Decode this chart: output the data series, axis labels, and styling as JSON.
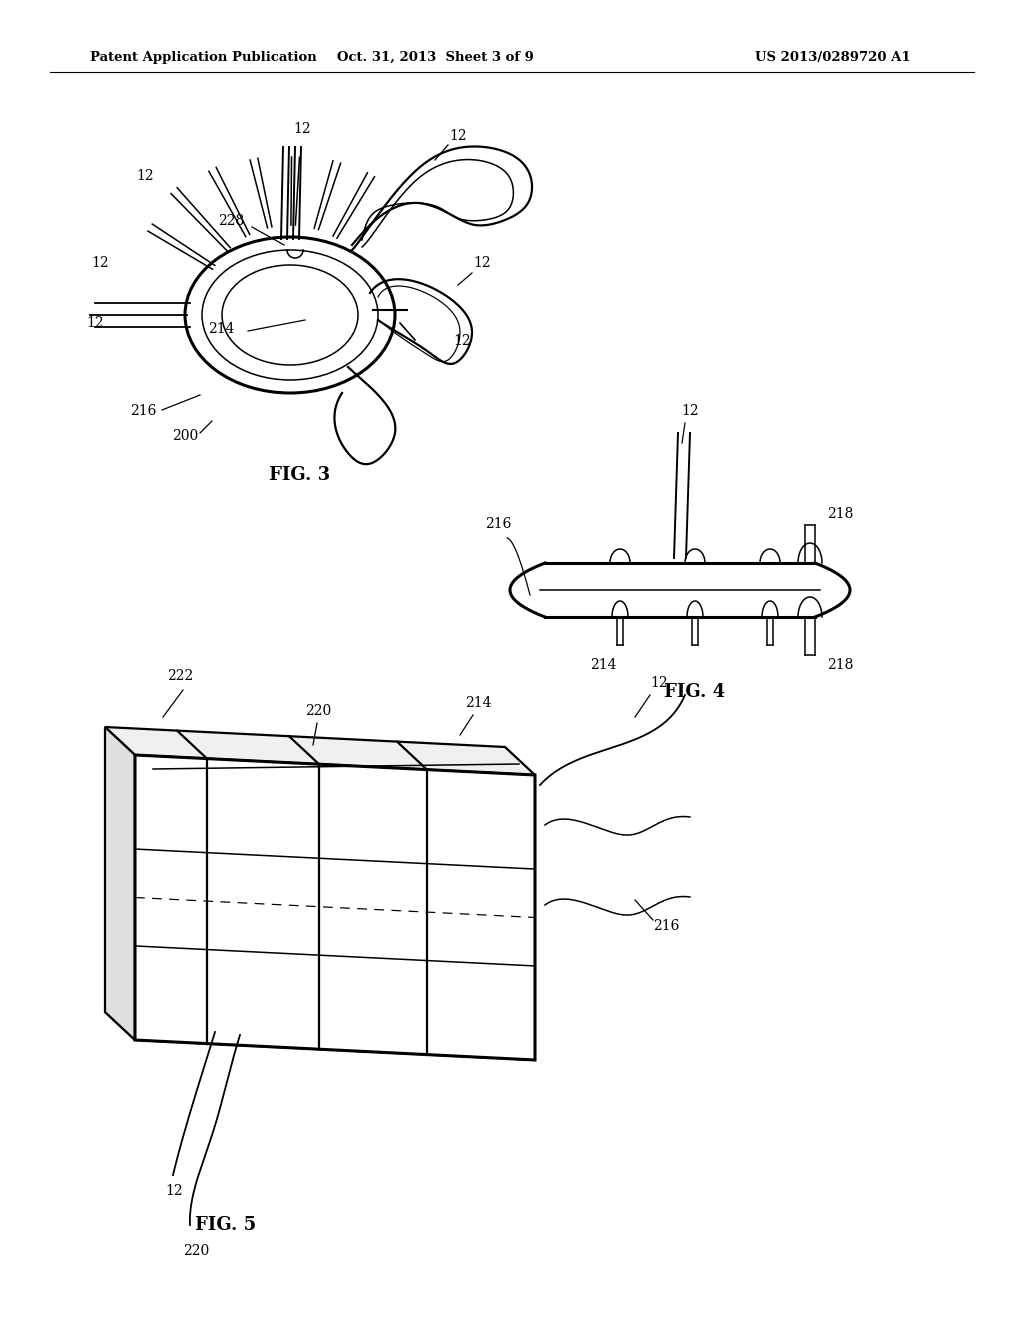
{
  "background_color": "#ffffff",
  "header_left": "Patent Application Publication",
  "header_center": "Oct. 31, 2013  Sheet 3 of 9",
  "header_right": "US 2013/0289720 A1",
  "fig3_label": "FIG. 3",
  "fig4_label": "FIG. 4",
  "fig5_label": "FIG. 5",
  "lw": 1.6,
  "lw2": 2.2,
  "lw_t": 1.1,
  "fs": 10,
  "fs_fig": 13
}
